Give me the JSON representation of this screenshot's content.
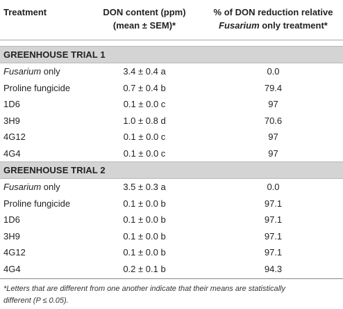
{
  "header": {
    "treatment": "Treatment",
    "don_line1": "DON content (ppm)",
    "don_line2": "(mean ± SEM)*",
    "red_line1": "% of DON reduction relative",
    "red_line2_italic": "Fusarium",
    "red_line2_rest": " only treatment*"
  },
  "trials": [
    {
      "title": "GREENHOUSE TRIAL 1",
      "rows": [
        {
          "treatment_italic": "Fusarium",
          "treatment_rest": " only",
          "don": "3.4 ± 0.4 a",
          "reduction": "0.0"
        },
        {
          "treatment_italic": "",
          "treatment_rest": "Proline fungicide",
          "don": "0.7 ± 0.4 b",
          "reduction": "79.4"
        },
        {
          "treatment_italic": "",
          "treatment_rest": "1D6",
          "don": "0.1 ± 0.0 c",
          "reduction": "97"
        },
        {
          "treatment_italic": "",
          "treatment_rest": "3H9",
          "don": "1.0 ± 0.8 d",
          "reduction": "70.6"
        },
        {
          "treatment_italic": "",
          "treatment_rest": "4G12",
          "don": "0.1 ± 0.0 c",
          "reduction": "97"
        },
        {
          "treatment_italic": "",
          "treatment_rest": "4G4",
          "don": "0.1 ± 0.0 c",
          "reduction": "97"
        }
      ]
    },
    {
      "title": "GREENHOUSE TRIAL 2",
      "rows": [
        {
          "treatment_italic": "Fusarium",
          "treatment_rest": " only",
          "don": "3.5 ± 0.3 a",
          "reduction": "0.0"
        },
        {
          "treatment_italic": "",
          "treatment_rest": "Proline fungicide",
          "don": "0.1 ± 0.0 b",
          "reduction": "97.1"
        },
        {
          "treatment_italic": "",
          "treatment_rest": "1D6",
          "don": "0.1 ± 0.0 b",
          "reduction": "97.1"
        },
        {
          "treatment_italic": "",
          "treatment_rest": "3H9",
          "don": "0.1 ± 0.0 b",
          "reduction": "97.1"
        },
        {
          "treatment_italic": "",
          "treatment_rest": "4G12",
          "don": "0.1 ± 0.0 b",
          "reduction": "97.1"
        },
        {
          "treatment_italic": "",
          "treatment_rest": "4G4",
          "don": "0.2 ± 0.1 b",
          "reduction": "94.3"
        }
      ]
    }
  ],
  "footnote": {
    "line1": "*Letters that are different from one another indicate that their means are statistically",
    "line2": "different (P ≤ 0.05)."
  }
}
